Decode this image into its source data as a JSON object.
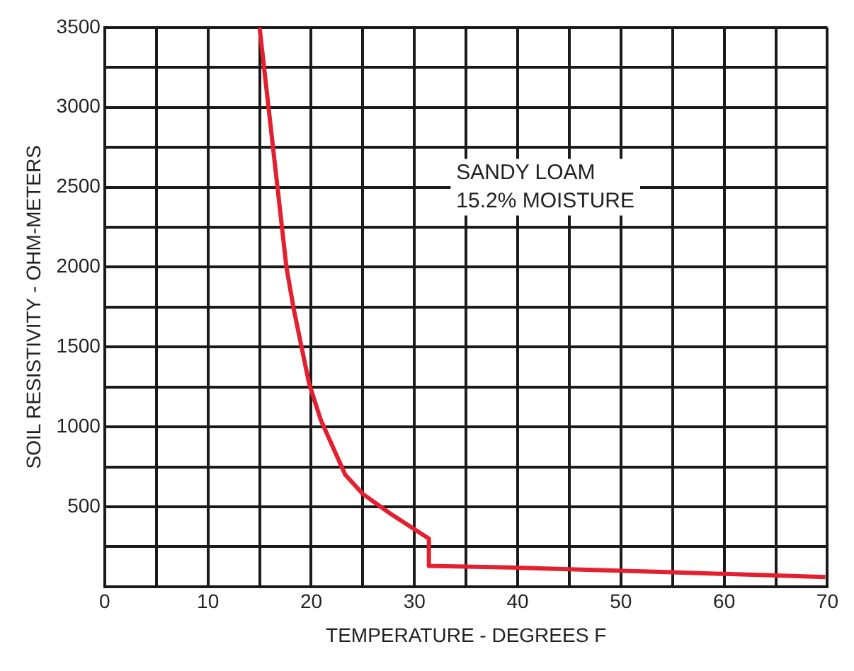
{
  "chart_data": {
    "type": "line",
    "xlabel": "TEMPERATURE - DEGREES F",
    "ylabel": "SOIL RESISTIVITY - OHM-METERS",
    "x": [
      15.0,
      17.6,
      18.3,
      19.8,
      20.95,
      23.3,
      25,
      27.6,
      31.4,
      31.4,
      39.3,
      55,
      69.8
    ],
    "series": [
      {
        "color": "#e3202f",
        "values": [
          3500,
          2000,
          1740,
          1270,
          1040,
          700,
          580,
          460,
          300,
          130,
          120,
          90,
          60
        ]
      }
    ],
    "xlim": [
      0,
      70
    ],
    "xticks": [
      0,
      {
        "value": 5,
        "label": null
      },
      10,
      {
        "value": 15,
        "label": null
      },
      20,
      {
        "value": 25,
        "label": null
      },
      30,
      {
        "value": 35,
        "label": null
      },
      40,
      {
        "value": 45,
        "label": null
      },
      50,
      {
        "value": 55,
        "label": null
      },
      60,
      {
        "value": 65,
        "label": null
      },
      70
    ],
    "ylim": [
      0,
      3500
    ],
    "yticks": [
      {
        "value": 0,
        "label": null
      },
      {
        "value": 250,
        "label": null
      },
      500,
      {
        "value": 750,
        "label": null
      },
      1000,
      {
        "value": 1250,
        "label": null
      },
      1500,
      {
        "value": 1750,
        "label": null
      },
      2000,
      {
        "value": 2250,
        "label": null
      },
      2500,
      {
        "value": 2750,
        "label": null
      },
      3000,
      {
        "value": 3250,
        "label": null
      },
      3500
    ],
    "annotations": [
      "SANDY LOAM",
      "15.2% MOISTURE"
    ],
    "grid": true,
    "legend": false,
    "marker": "none",
    "line_style": "solid"
  }
}
